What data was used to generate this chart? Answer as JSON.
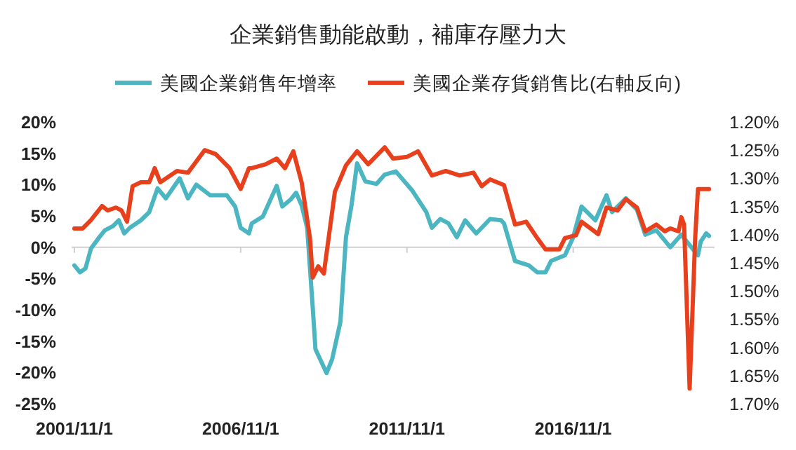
{
  "chart_data": {
    "type": "line",
    "title": "企業銷售動能啟動，補庫存壓力大",
    "legend": "top",
    "xlim": [
      "2001-10",
      "2021-02"
    ],
    "xticks": [
      {
        "value": "2001-11",
        "label": "2001/11/1"
      },
      {
        "value": "2006-11",
        "label": "2006/11/1"
      },
      {
        "value": "2011-11",
        "label": "2011/11/1"
      },
      {
        "value": "2016-11",
        "label": "2016/11/1"
      }
    ],
    "ylim": [
      -25,
      20
    ],
    "yticks": [
      {
        "value": 20,
        "label": "20%"
      },
      {
        "value": 15,
        "label": "15%"
      },
      {
        "value": 10,
        "label": "10%"
      },
      {
        "value": 5,
        "label": "5%"
      },
      {
        "value": 0,
        "label": "0%"
      },
      {
        "value": -5,
        "label": "-5%"
      },
      {
        "value": -10,
        "label": "-10%"
      },
      {
        "value": -15,
        "label": "-15%"
      },
      {
        "value": -20,
        "label": "-20%"
      },
      {
        "value": -25,
        "label": "-25%"
      }
    ],
    "y2lim": [
      1.7,
      1.2
    ],
    "y2ticks": [
      {
        "value": 1.2,
        "label": "1.20%"
      },
      {
        "value": 1.25,
        "label": "1.25%"
      },
      {
        "value": 1.3,
        "label": "1.30%"
      },
      {
        "value": 1.35,
        "label": "1.35%"
      },
      {
        "value": 1.4,
        "label": "1.40%"
      },
      {
        "value": 1.45,
        "label": "1.45%"
      },
      {
        "value": 1.5,
        "label": "1.50%"
      },
      {
        "value": 1.55,
        "label": "1.55%"
      },
      {
        "value": 1.6,
        "label": "1.60%"
      },
      {
        "value": 1.65,
        "label": "1.65%"
      },
      {
        "value": 1.7,
        "label": "1.70%"
      }
    ],
    "series": [
      {
        "name": "美國企業銷售年增率",
        "color": "#4bb5c1",
        "x": [
          "2001-11",
          "2002-01",
          "2002-03",
          "2002-05",
          "2002-08",
          "2002-10",
          "2003-01",
          "2003-03",
          "2003-05",
          "2003-07",
          "2003-11",
          "2004-02",
          "2004-05",
          "2004-08",
          "2005-01",
          "2005-04",
          "2005-07",
          "2005-12",
          "2006-06",
          "2006-09",
          "2006-11",
          "2007-02",
          "2007-03",
          "2007-07",
          "2007-12",
          "2008-02",
          "2008-05",
          "2008-07",
          "2008-09",
          "2008-11",
          "2009-01",
          "2009-02",
          "2009-06",
          "2009-08",
          "2009-11",
          "2010-01",
          "2010-03",
          "2010-05",
          "2010-08",
          "2010-12",
          "2011-03",
          "2011-07",
          "2012-01",
          "2012-06",
          "2012-08",
          "2012-11",
          "2013-02",
          "2013-05",
          "2013-08",
          "2013-12",
          "2014-05",
          "2014-09",
          "2014-10",
          "2015-02",
          "2015-07",
          "2015-10",
          "2016-01",
          "2016-03",
          "2016-08",
          "2016-11",
          "2017-02",
          "2017-07",
          "2017-11",
          "2018-01",
          "2018-06",
          "2018-10",
          "2019-01",
          "2019-05",
          "2019-10",
          "2020-02",
          "2020-08",
          "2020-09",
          "2020-11",
          "2020-12"
        ],
        "values": [
          -2.9,
          -4,
          -3.4,
          -0.2,
          1.6,
          2.7,
          3.4,
          4.3,
          2.2,
          3.1,
          4.3,
          5.6,
          9.4,
          7.8,
          11,
          7.8,
          10,
          8.3,
          8.3,
          6.5,
          3.1,
          2.2,
          3.8,
          4.9,
          9.8,
          6.5,
          7.6,
          8.7,
          6.7,
          3.1,
          -9.6,
          -16.3,
          -20.1,
          -17.9,
          -11.9,
          1.6,
          6.7,
          13.4,
          10.5,
          10.1,
          11.6,
          12.1,
          9,
          5.6,
          3.1,
          4.5,
          3.8,
          1.6,
          4.3,
          2.2,
          4.5,
          4.3,
          3.8,
          -2.2,
          -2.9,
          -4,
          -4,
          -2.2,
          -1.3,
          1.6,
          6.5,
          4.3,
          8.3,
          5.6,
          7.8,
          6,
          2,
          2.7,
          0,
          2,
          -1.3,
          0.9,
          2.2,
          1.8
        ]
      },
      {
        "name": "美國企業存貨銷售比(右軸反向)",
        "color": "#e8401c",
        "axis": "y2",
        "x": [
          "2001-11",
          "2002-02",
          "2002-05",
          "2002-09",
          "2002-11",
          "2003-02",
          "2003-04",
          "2003-06",
          "2003-08",
          "2003-11",
          "2004-02",
          "2004-04",
          "2004-06",
          "2004-12",
          "2005-04",
          "2005-10",
          "2006-02",
          "2006-07",
          "2006-11",
          "2007-02",
          "2007-03",
          "2007-08",
          "2007-12",
          "2008-03",
          "2008-06",
          "2008-09",
          "2008-12",
          "2009-01",
          "2009-03",
          "2009-05",
          "2009-09",
          "2010-01",
          "2010-05",
          "2010-09",
          "2011-03",
          "2011-06",
          "2011-11",
          "2012-03",
          "2012-08",
          "2013-01",
          "2013-06",
          "2013-11",
          "2014-02",
          "2014-05",
          "2014-10",
          "2015-02",
          "2015-06",
          "2015-10",
          "2016-01",
          "2016-06",
          "2016-08",
          "2016-12",
          "2017-02",
          "2017-08",
          "2017-11",
          "2018-03",
          "2018-06",
          "2018-10",
          "2019-01",
          "2019-05",
          "2019-08",
          "2019-10",
          "2020-01",
          "2020-02",
          "2020-03",
          "2020-05",
          "2020-07",
          "2020-08",
          "2020-11",
          "2020-12"
        ],
        "values": [
          1.389,
          1.389,
          1.374,
          1.349,
          1.357,
          1.352,
          1.357,
          1.377,
          1.314,
          1.307,
          1.307,
          1.282,
          1.307,
          1.287,
          1.29,
          1.25,
          1.257,
          1.282,
          1.319,
          1.282,
          1.282,
          1.275,
          1.265,
          1.282,
          1.252,
          1.307,
          1.406,
          1.476,
          1.456,
          1.469,
          1.324,
          1.277,
          1.252,
          1.275,
          1.245,
          1.265,
          1.262,
          1.252,
          1.295,
          1.287,
          1.295,
          1.29,
          1.314,
          1.302,
          1.312,
          1.382,
          1.377,
          1.406,
          1.426,
          1.426,
          1.406,
          1.401,
          1.377,
          1.399,
          1.352,
          1.357,
          1.337,
          1.352,
          1.394,
          1.382,
          1.394,
          1.389,
          1.394,
          1.369,
          1.382,
          1.673,
          1.406,
          1.319,
          1.319,
          1.319
        ]
      }
    ]
  }
}
